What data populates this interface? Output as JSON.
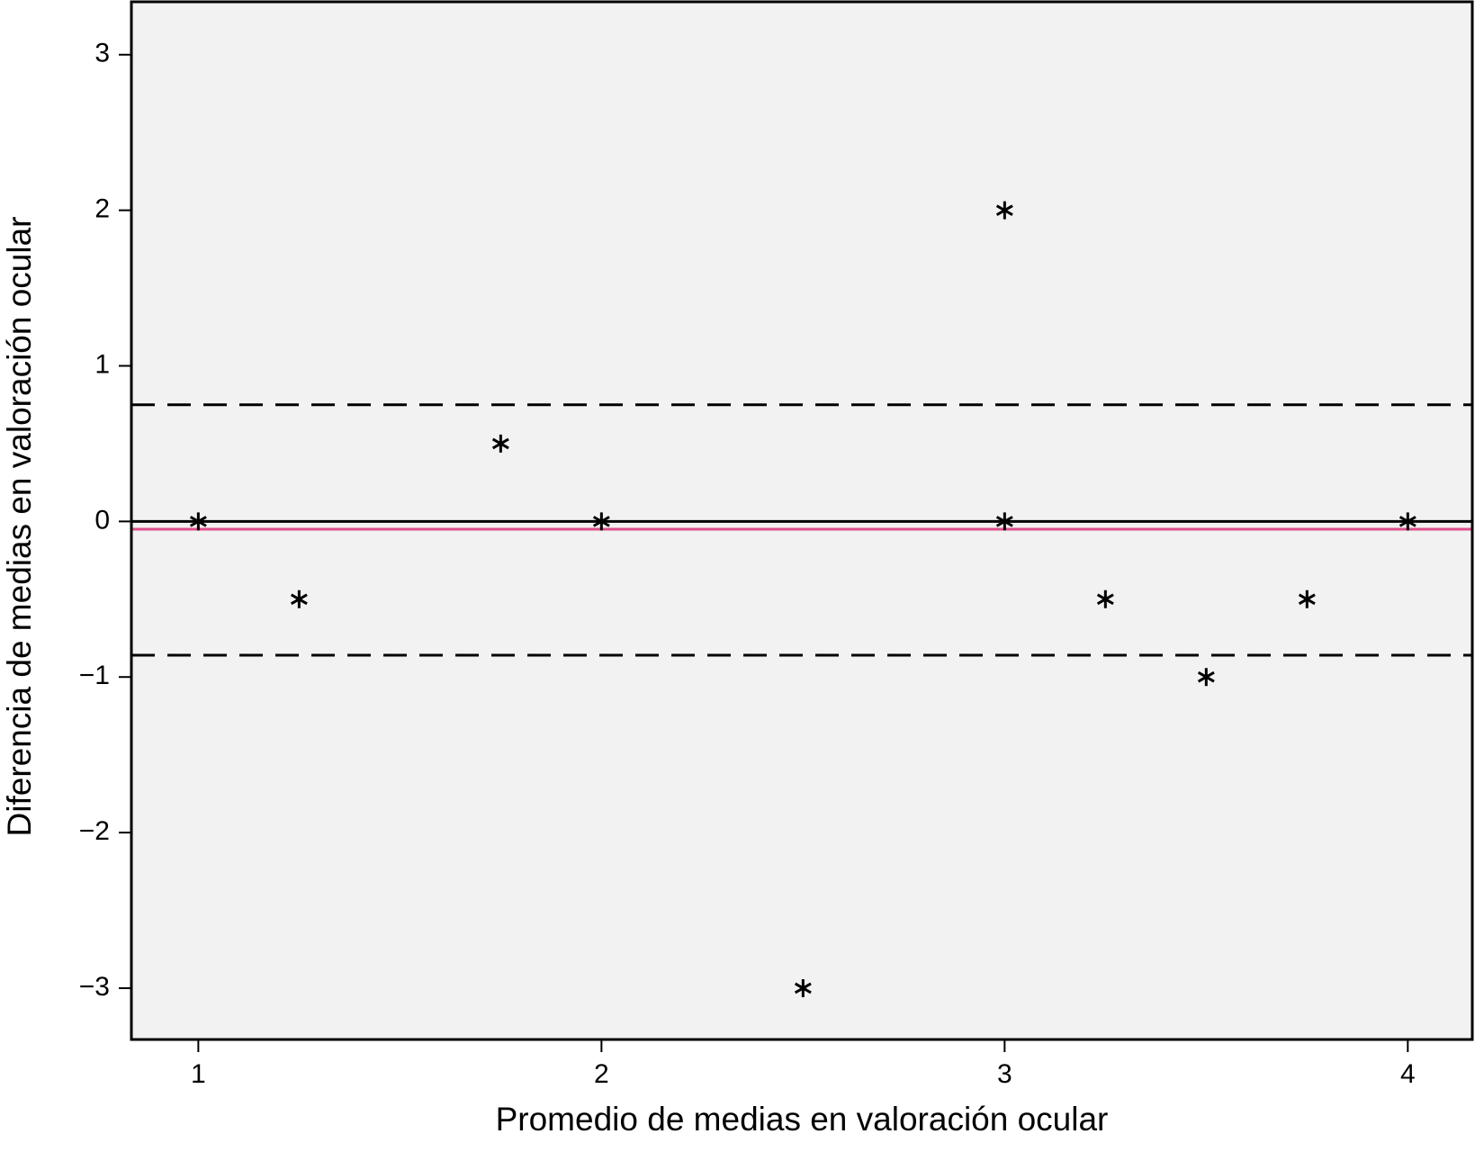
{
  "chart_data": {
    "type": "scatter",
    "x_label": "Promedio de medias en valoración ocular",
    "y_label": "Diferencia de medias en valoración ocular",
    "x": [
      1,
      1.25,
      1.75,
      2,
      2.5,
      3,
      3,
      3.25,
      3.5,
      3.75,
      4
    ],
    "values": [
      0,
      -0.5,
      0.5,
      0,
      -3,
      2,
      0,
      -0.5,
      -1,
      -0.5,
      0
    ],
    "color": "#000000",
    "background": "#f2f2f2",
    "xlim": [
      0.834,
      4.16
    ],
    "xticks": [
      1,
      2,
      3,
      4
    ],
    "ylim": [
      -3.33,
      3.34
    ],
    "yticks": [
      {
        "value": -3,
        "label": "−3"
      },
      {
        "value": -2,
        "label": "−2"
      },
      {
        "value": -1,
        "label": "−1"
      },
      0,
      1,
      2,
      3
    ],
    "reference_lines": [
      {
        "value": 0,
        "color": "#000000",
        "style": "solid"
      },
      {
        "value": -0.05,
        "color": "#e0508c",
        "style": "solid"
      },
      {
        "value": 0.75,
        "color": "#000000",
        "style": "dashed"
      },
      {
        "value": -0.86,
        "color": "#000000",
        "style": "dashed"
      }
    ]
  }
}
